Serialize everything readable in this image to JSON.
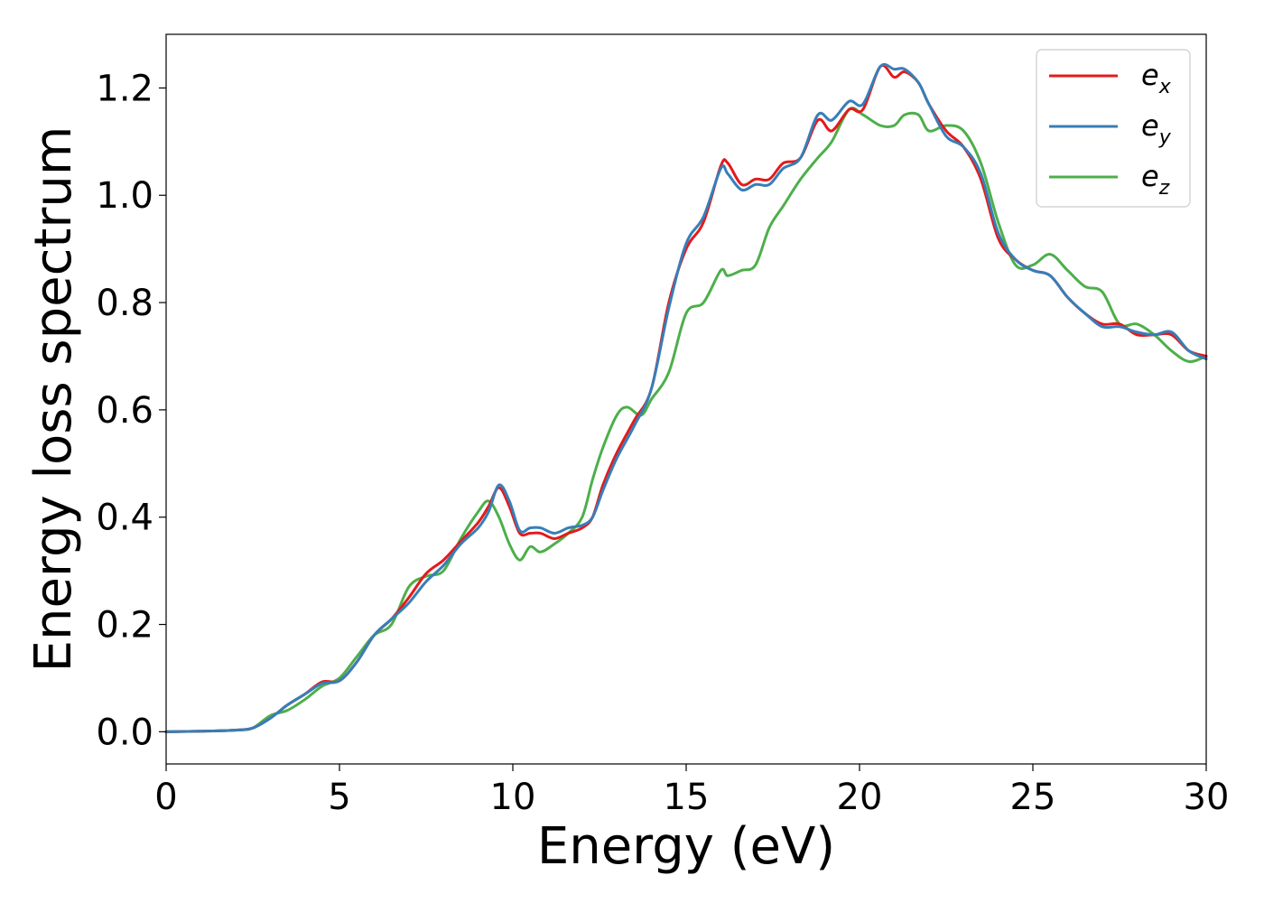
{
  "chart_data": {
    "type": "line",
    "xlabel": "Energy (eV)",
    "ylabel": "Energy loss spectrum",
    "xlim": [
      0,
      30
    ],
    "ylim": [
      -0.06,
      1.3
    ],
    "xticks": [
      0,
      5,
      10,
      15,
      20,
      25,
      30
    ],
    "xtick_labels": [
      "0",
      "5",
      "10",
      "15",
      "20",
      "25",
      "30"
    ],
    "yticks": [
      0.0,
      0.2,
      0.4,
      0.6,
      0.8,
      1.0,
      1.2
    ],
    "ytick_labels": [
      "0.0",
      "0.2",
      "0.4",
      "0.6",
      "0.8",
      "1.0",
      "1.2"
    ],
    "grid": false,
    "legend": {
      "position": "top-right"
    },
    "series": [
      {
        "name": "e_x",
        "label_base": "e",
        "label_sub": "x",
        "color": "#e41a1c",
        "x": [
          0,
          1,
          2,
          2.5,
          3,
          3.5,
          4,
          4.5,
          5,
          5.5,
          6,
          6.5,
          7,
          7.5,
          8,
          8.5,
          9,
          9.3,
          9.6,
          9.9,
          10.2,
          10.5,
          10.8,
          11.2,
          11.6,
          12,
          12.3,
          12.6,
          13,
          13.5,
          14,
          14.5,
          15,
          15.5,
          16,
          16.2,
          16.6,
          17,
          17.4,
          17.8,
          18.3,
          18.8,
          19.2,
          19.7,
          20.1,
          20.6,
          21,
          21.3,
          21.7,
          22,
          22.5,
          23,
          23.5,
          24,
          24.5,
          25,
          25.5,
          26,
          26.5,
          27,
          27.5,
          28,
          28.5,
          29,
          29.5,
          30
        ],
        "y": [
          0,
          0.001,
          0.003,
          0.007,
          0.025,
          0.05,
          0.07,
          0.093,
          0.095,
          0.13,
          0.18,
          0.21,
          0.25,
          0.295,
          0.32,
          0.355,
          0.39,
          0.42,
          0.455,
          0.42,
          0.37,
          0.37,
          0.37,
          0.36,
          0.37,
          0.38,
          0.4,
          0.46,
          0.52,
          0.58,
          0.64,
          0.8,
          0.9,
          0.95,
          1.055,
          1.06,
          1.02,
          1.03,
          1.03,
          1.06,
          1.07,
          1.14,
          1.12,
          1.16,
          1.16,
          1.24,
          1.22,
          1.23,
          1.21,
          1.17,
          1.12,
          1.09,
          1.03,
          0.92,
          0.88,
          0.86,
          0.85,
          0.81,
          0.78,
          0.76,
          0.76,
          0.74,
          0.74,
          0.74,
          0.71,
          0.7
        ]
      },
      {
        "name": "e_y",
        "label_base": "e",
        "label_sub": "y",
        "color": "#377eb8",
        "x": [
          0,
          1,
          2,
          2.5,
          3,
          3.5,
          4,
          4.5,
          5,
          5.5,
          6,
          6.5,
          7,
          7.5,
          8,
          8.5,
          9,
          9.3,
          9.6,
          9.9,
          10.2,
          10.5,
          10.8,
          11.2,
          11.6,
          12,
          12.3,
          12.6,
          13,
          13.5,
          14,
          14.5,
          15,
          15.5,
          16,
          16.2,
          16.6,
          17,
          17.4,
          17.8,
          18.3,
          18.8,
          19.2,
          19.7,
          20.1,
          20.6,
          21,
          21.3,
          21.7,
          22,
          22.5,
          23,
          23.5,
          24,
          24.5,
          25,
          25.5,
          26,
          26.5,
          27,
          27.5,
          28,
          28.5,
          29,
          29.5,
          30
        ],
        "y": [
          0,
          0.001,
          0.003,
          0.007,
          0.025,
          0.05,
          0.07,
          0.09,
          0.095,
          0.13,
          0.18,
          0.21,
          0.24,
          0.28,
          0.31,
          0.35,
          0.38,
          0.41,
          0.46,
          0.43,
          0.375,
          0.38,
          0.38,
          0.37,
          0.38,
          0.385,
          0.4,
          0.45,
          0.51,
          0.57,
          0.64,
          0.79,
          0.91,
          0.96,
          1.05,
          1.04,
          1.01,
          1.02,
          1.02,
          1.05,
          1.07,
          1.15,
          1.14,
          1.175,
          1.17,
          1.24,
          1.235,
          1.235,
          1.21,
          1.17,
          1.11,
          1.09,
          1.04,
          0.93,
          0.88,
          0.86,
          0.85,
          0.81,
          0.78,
          0.755,
          0.755,
          0.745,
          0.74,
          0.745,
          0.71,
          0.695
        ]
      },
      {
        "name": "e_z",
        "label_base": "e",
        "label_sub": "z",
        "color": "#4daf4a",
        "x": [
          0,
          1,
          2,
          2.5,
          3,
          3.5,
          4,
          4.5,
          5,
          5.5,
          6,
          6.5,
          7,
          7.5,
          8,
          8.5,
          9,
          9.3,
          9.6,
          9.9,
          10.2,
          10.5,
          10.8,
          11.2,
          11.6,
          12,
          12.3,
          12.6,
          13,
          13.3,
          13.7,
          14,
          14.5,
          15,
          15.5,
          16,
          16.2,
          16.6,
          17,
          17.4,
          17.8,
          18.3,
          18.8,
          19.2,
          19.7,
          20.1,
          20.6,
          21,
          21.3,
          21.7,
          22,
          22.5,
          23,
          23.5,
          24,
          24.5,
          25,
          25.5,
          26,
          26.5,
          27,
          27.5,
          28,
          28.5,
          29,
          29.5,
          30
        ],
        "y": [
          0,
          0.001,
          0.003,
          0.007,
          0.03,
          0.04,
          0.06,
          0.085,
          0.1,
          0.14,
          0.18,
          0.2,
          0.27,
          0.29,
          0.3,
          0.36,
          0.41,
          0.43,
          0.4,
          0.35,
          0.32,
          0.345,
          0.335,
          0.35,
          0.37,
          0.4,
          0.47,
          0.53,
          0.59,
          0.605,
          0.59,
          0.62,
          0.67,
          0.78,
          0.8,
          0.86,
          0.85,
          0.86,
          0.87,
          0.94,
          0.98,
          1.03,
          1.07,
          1.1,
          1.16,
          1.15,
          1.13,
          1.13,
          1.15,
          1.15,
          1.12,
          1.13,
          1.12,
          1.06,
          0.95,
          0.87,
          0.87,
          0.89,
          0.86,
          0.83,
          0.82,
          0.76,
          0.76,
          0.74,
          0.71,
          0.69,
          0.7
        ]
      }
    ]
  }
}
